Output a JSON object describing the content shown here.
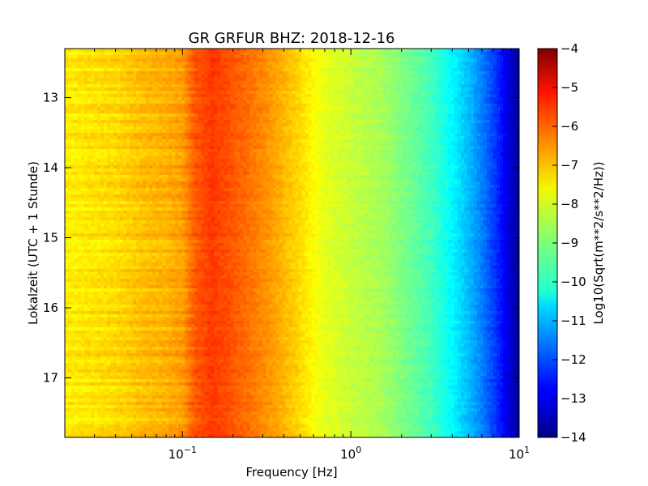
{
  "chart_data": {
    "type": "heatmap",
    "title": "GR GRFUR BHZ: 2018-12-16",
    "xlabel": "Frequency [Hz]",
    "ylabel": "Lokalzeit (UTC + 1 Stunde)",
    "x_scale": "log",
    "xlim": [
      0.02,
      10
    ],
    "ylim": [
      12.3,
      17.85
    ],
    "y_inverted": true,
    "x_ticks": [
      {
        "value": 0.1,
        "base": "10",
        "exp": "−1"
      },
      {
        "value": 1,
        "base": "10",
        "exp": "0"
      },
      {
        "value": 10,
        "base": "10",
        "exp": "1"
      }
    ],
    "y_ticks": [
      {
        "value": 13,
        "label": "13"
      },
      {
        "value": 14,
        "label": "14"
      },
      {
        "value": 15,
        "label": "15"
      },
      {
        "value": 16,
        "label": "16"
      },
      {
        "value": 17,
        "label": "17"
      }
    ],
    "colorbar": {
      "label": "Log10(Sqrt(m**2/s**2/Hz))",
      "range": [
        -14,
        -4
      ],
      "colormap": "jet",
      "ticks": [
        "−4",
        "−5",
        "−6",
        "−7",
        "−8",
        "−9",
        "−10",
        "−11",
        "−12",
        "−13",
        "−14"
      ]
    },
    "spectrum_profile": {
      "freq_hz": [
        0.02,
        0.04,
        0.06,
        0.08,
        0.1,
        0.12,
        0.15,
        0.2,
        0.3,
        0.5,
        0.7,
        1.0,
        1.5,
        2.0,
        3.0,
        4.0,
        5.0,
        6.0,
        7.0,
        8.0,
        9.0,
        10.0
      ],
      "log10_amplitude": [
        -7.6,
        -7.4,
        -7.1,
        -7.0,
        -6.8,
        -6.1,
        -5.8,
        -6.1,
        -6.6,
        -7.4,
        -8.0,
        -8.3,
        -8.6,
        -9.0,
        -9.6,
        -10.3,
        -10.9,
        -11.5,
        -12.1,
        -12.7,
        -13.3,
        -13.8
      ]
    }
  }
}
